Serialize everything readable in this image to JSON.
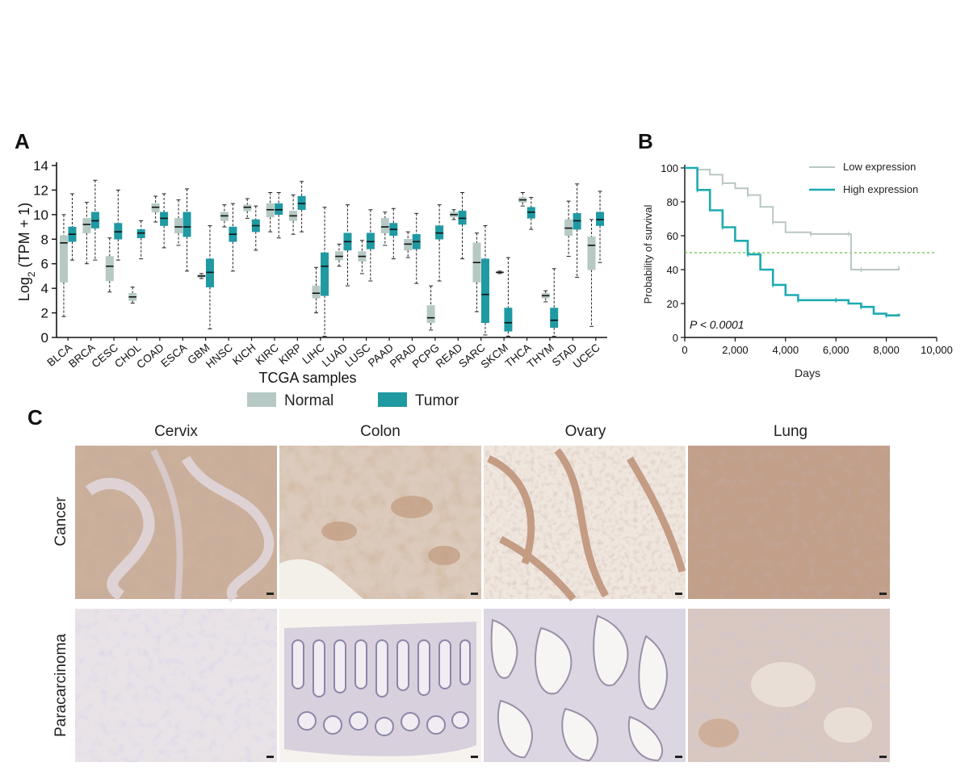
{
  "panels": {
    "a": "A",
    "b": "B",
    "c": "C"
  },
  "colors": {
    "normal": "#b6c9c5",
    "tumor": "#1f99a2",
    "low": "#b9c6c5",
    "high": "#1eaab1",
    "median_line": "#6cc24a"
  },
  "chart_data": [
    {
      "type": "box",
      "panel": "A",
      "xlabel": "TCGA samples",
      "ylabel": "Log2 (TPM + 1)",
      "ylim": [
        0,
        14
      ],
      "yticks": [
        0,
        2,
        4,
        6,
        8,
        10,
        12,
        14
      ],
      "legend": {
        "position": "bottom",
        "entries": [
          "Normal",
          "Tumor"
        ]
      },
      "categories": [
        "BLCA",
        "BRCA",
        "CESC",
        "CHOL",
        "COAD",
        "ESCA",
        "GBM",
        "HNSC",
        "KICH",
        "KIRC",
        "KIRP",
        "LIHC",
        "LUAD",
        "LUSC",
        "PAAD",
        "PRAD",
        "PCPG",
        "READ",
        "SARC",
        "SKCM",
        "THCA",
        "THYM",
        "STAD",
        "UCEC"
      ],
      "series": [
        {
          "name": "Normal",
          "boxes": [
            {
              "min": 1.7,
              "q1": 4.5,
              "median": 7.7,
              "q3": 8.3,
              "max": 10
            },
            {
              "min": 6,
              "q1": 8.5,
              "median": 9.2,
              "q3": 9.7,
              "max": 11
            },
            {
              "min": 3.7,
              "q1": 4.6,
              "median": 5.8,
              "q3": 6.6,
              "max": 8.1
            },
            {
              "min": 2.8,
              "q1": 3,
              "median": 3.3,
              "q3": 3.6,
              "max": 4.1
            },
            {
              "min": 9.4,
              "q1": 10.2,
              "median": 10.6,
              "q3": 10.9,
              "max": 11.5
            },
            {
              "min": 7.5,
              "q1": 8.5,
              "median": 9,
              "q3": 9.7,
              "max": 11.2
            },
            {
              "min": 4.8,
              "q1": 4.9,
              "median": 5,
              "q3": 5.1,
              "max": 5.2
            },
            {
              "min": 9,
              "q1": 9.5,
              "median": 9.9,
              "q3": 10.2,
              "max": 10.8
            },
            {
              "min": 9.7,
              "q1": 10.3,
              "median": 10.6,
              "q3": 10.8,
              "max": 11.3
            },
            {
              "min": 8.6,
              "q1": 9.8,
              "median": 10.4,
              "q3": 10.9,
              "max": 11.8
            },
            {
              "min": 8.4,
              "q1": 9.5,
              "median": 9.9,
              "q3": 10.3,
              "max": 11.6
            },
            {
              "min": 2,
              "q1": 3.2,
              "median": 3.6,
              "q3": 4.2,
              "max": 5.7
            },
            {
              "min": 5.8,
              "q1": 6.3,
              "median": 6.6,
              "q3": 7,
              "max": 7.6
            },
            {
              "min": 5.2,
              "q1": 6.2,
              "median": 6.6,
              "q3": 7,
              "max": 7.9
            },
            {
              "min": 7.5,
              "q1": 8.5,
              "median": 9,
              "q3": 9.7,
              "max": 10.2
            },
            {
              "min": 6.5,
              "q1": 7.1,
              "median": 7.6,
              "q3": 8,
              "max": 8.6
            },
            {
              "min": 0.6,
              "q1": 1.2,
              "median": 1.6,
              "q3": 2.6,
              "max": 4.2
            },
            {
              "min": 9.6,
              "q1": 9.8,
              "median": 10,
              "q3": 10.2,
              "max": 10.4
            },
            {
              "min": 2.1,
              "q1": 4.5,
              "median": 6.1,
              "q3": 7.7,
              "max": 8.5
            },
            {
              "min": 5.2,
              "q1": 5.25,
              "median": 5.3,
              "q3": 5.35,
              "max": 5.4
            },
            {
              "min": 10.7,
              "q1": 11,
              "median": 11.2,
              "q3": 11.4,
              "max": 11.8
            },
            {
              "min": 2.9,
              "q1": 3.2,
              "median": 3.4,
              "q3": 3.6,
              "max": 3.8
            },
            {
              "min": 6.6,
              "q1": 8.3,
              "median": 8.9,
              "q3": 9.6,
              "max": 11.1
            },
            {
              "min": 0.9,
              "q1": 5.5,
              "median": 7.5,
              "q3": 8.2,
              "max": 9.6
            }
          ]
        },
        {
          "name": "Tumor",
          "boxes": [
            {
              "min": 6.3,
              "q1": 7.8,
              "median": 8.4,
              "q3": 9,
              "max": 11.7
            },
            {
              "min": 6.3,
              "q1": 8.9,
              "median": 9.5,
              "q3": 10.2,
              "max": 12.8
            },
            {
              "min": 6.3,
              "q1": 8,
              "median": 8.6,
              "q3": 9.3,
              "max": 12
            },
            {
              "min": 6.4,
              "q1": 8.1,
              "median": 8.5,
              "q3": 8.8,
              "max": 9.5
            },
            {
              "min": 7.3,
              "q1": 9.1,
              "median": 9.7,
              "q3": 10.2,
              "max": 11.7
            },
            {
              "min": 5.4,
              "q1": 8.2,
              "median": 9,
              "q3": 10.2,
              "max": 12.1
            },
            {
              "min": 0.7,
              "q1": 4.1,
              "median": 5.3,
              "q3": 6.4,
              "max": 9.1
            },
            {
              "min": 5.4,
              "q1": 7.8,
              "median": 8.4,
              "q3": 9,
              "max": 10.9
            },
            {
              "min": 7.1,
              "q1": 8.6,
              "median": 9.1,
              "q3": 9.6,
              "max": 10.7
            },
            {
              "min": 8.1,
              "q1": 10,
              "median": 10.4,
              "q3": 10.9,
              "max": 11.8
            },
            {
              "min": 8.6,
              "q1": 10.4,
              "median": 10.9,
              "q3": 11.5,
              "max": 12.7
            },
            {
              "min": 0.1,
              "q1": 3.4,
              "median": 5.8,
              "q3": 6.9,
              "max": 10.6
            },
            {
              "min": 4.2,
              "q1": 7.1,
              "median": 7.8,
              "q3": 8.5,
              "max": 10.8
            },
            {
              "min": 4.6,
              "q1": 7.2,
              "median": 7.8,
              "q3": 8.5,
              "max": 10.4
            },
            {
              "min": 6.4,
              "q1": 8.3,
              "median": 8.8,
              "q3": 9.3,
              "max": 10.5
            },
            {
              "min": 4.4,
              "q1": 7.2,
              "median": 7.8,
              "q3": 8.4,
              "max": 10.1
            },
            {
              "min": 4.6,
              "q1": 8,
              "median": 8.5,
              "q3": 9.1,
              "max": 10.8
            },
            {
              "min": 6.4,
              "q1": 9.2,
              "median": 9.7,
              "q3": 10.3,
              "max": 11.8
            },
            {
              "min": 0.2,
              "q1": 1.2,
              "median": 3.5,
              "q3": 6.4,
              "max": 9.1
            },
            {
              "min": 0.1,
              "q1": 0.5,
              "median": 1.2,
              "q3": 2.4,
              "max": 6.5
            },
            {
              "min": 8.8,
              "q1": 9.7,
              "median": 10.2,
              "q3": 10.6,
              "max": 11.4
            },
            {
              "min": 0.1,
              "q1": 0.8,
              "median": 1.4,
              "q3": 2.4,
              "max": 5.6
            },
            {
              "min": 4.9,
              "q1": 8.8,
              "median": 9.5,
              "q3": 10.1,
              "max": 12.5
            },
            {
              "min": 6.1,
              "q1": 9.1,
              "median": 9.6,
              "q3": 10.2,
              "max": 11.9
            }
          ]
        }
      ]
    },
    {
      "type": "line",
      "panel": "B",
      "xlabel": "Days",
      "ylabel": "Probability of survival",
      "xlim": [
        0,
        10000
      ],
      "ylim": [
        0,
        100
      ],
      "xticks": [
        0,
        2000,
        4000,
        6000,
        8000,
        10000
      ],
      "xtick_labels": [
        "0",
        "2,000",
        "4,000",
        "6,000",
        "8,000",
        "10,000"
      ],
      "yticks": [
        0,
        20,
        40,
        60,
        80,
        100
      ],
      "annotation": "P < 0.0001",
      "reference_line_y": 50,
      "legend": {
        "position": "top-right",
        "entries": [
          "Low expression",
          "High expression"
        ]
      },
      "series": [
        {
          "name": "Low expression",
          "x": [
            0,
            500,
            1000,
            1500,
            2000,
            2500,
            3000,
            3500,
            4000,
            5000,
            6000,
            6500,
            6600,
            7000,
            8000,
            8500
          ],
          "y": [
            100,
            99,
            96,
            91,
            88,
            84,
            77,
            68,
            62,
            61,
            61,
            61,
            40,
            40,
            40,
            41
          ]
        },
        {
          "name": "High expression",
          "x": [
            0,
            500,
            1000,
            1500,
            2000,
            2500,
            3000,
            3500,
            4000,
            4500,
            5000,
            6000,
            6500,
            7000,
            7500,
            8000,
            8500
          ],
          "y": [
            100,
            87,
            75,
            65,
            57,
            49,
            40,
            31,
            25,
            22,
            22,
            22,
            20,
            18,
            14,
            13,
            14
          ]
        }
      ]
    }
  ],
  "panel_c": {
    "columns": [
      "Cervix",
      "Colon",
      "Ovary",
      "Lung"
    ],
    "rows": [
      "Cancer",
      "Paracarcinoma"
    ]
  }
}
